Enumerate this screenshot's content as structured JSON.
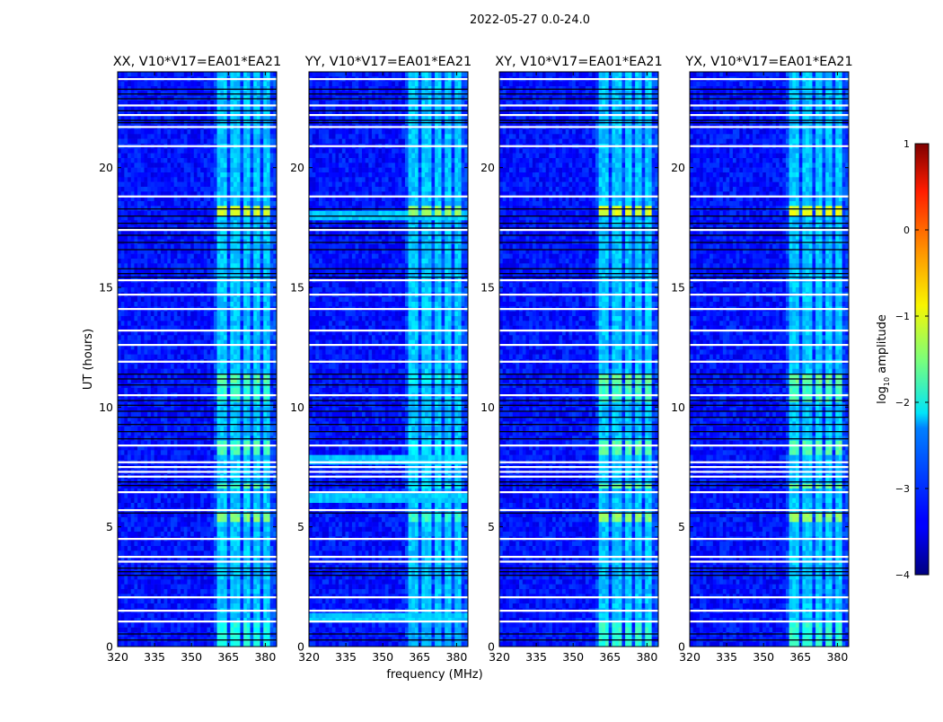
{
  "chart_data": {
    "type": "heatmap",
    "title": "2022-05-27 0.0-24.0",
    "ylabel": "UT (hours)",
    "xlabel": "frequency (MHz)",
    "xlim": [
      320,
      384.6
    ],
    "ylim": [
      0,
      24
    ],
    "xticks": [
      "320",
      "335",
      "350",
      "365",
      "380"
    ],
    "xtick_values": [
      320,
      335,
      350,
      365,
      380
    ],
    "yticks": [
      "0",
      "5",
      "10",
      "15",
      "20"
    ],
    "ytick_values": [
      0,
      5,
      10,
      15,
      20
    ],
    "colorbar": {
      "label_prefix": "log",
      "label_sub": "10",
      "label_suffix": " amplitude",
      "range": [
        -4,
        1
      ],
      "ticks": [
        "1",
        "0",
        "−1",
        "−2",
        "−3",
        "−4"
      ],
      "tick_values": [
        1,
        0,
        -1,
        -2,
        -3,
        -4
      ],
      "colormap": "jet"
    },
    "background_level": -3.3,
    "rfi_channels_mhz": [
      [
        361,
        364.5
      ],
      [
        366,
        369.5
      ],
      [
        371,
        374
      ],
      [
        375.5,
        378.5
      ],
      [
        379.5,
        382
      ]
    ],
    "rfi_level": -2.4,
    "bright_events": [
      {
        "t": [
          18.1,
          18.35
        ],
        "level": -1.1
      },
      {
        "t": [
          11.1,
          11.35
        ],
        "level": -1.7
      },
      {
        "t": [
          10.2,
          10.9
        ],
        "level": -1.9
      },
      {
        "t": [
          7.9,
          8.6
        ],
        "level": -1.8
      },
      {
        "t": [
          6.6,
          6.8
        ],
        "level": -1.7
      },
      {
        "t": [
          5.25,
          5.65
        ],
        "level": -1.5
      },
      {
        "t": [
          0.0,
          0.9
        ],
        "level": -2.0
      }
    ],
    "flagged_times_h": [
      23.7,
      22.6,
      22.2,
      21.7,
      20.9,
      18.8,
      17.4,
      15.3,
      14.7,
      14.1,
      13.2,
      12.6,
      11.9,
      10.5,
      8.4,
      7.7,
      7.5,
      7.3,
      7.1,
      6.45,
      5.7,
      4.5,
      3.75,
      3.55,
      2.06,
      1.5,
      1.05
    ],
    "dark_times_h": [
      23.3,
      23.1,
      22.9,
      22.4,
      22.0,
      21.9,
      18.3,
      18.0,
      17.7,
      17.5,
      17.2,
      16.9,
      16.6,
      15.8,
      15.6,
      15.45,
      11.4,
      11.2,
      10.95,
      10.3,
      10.1,
      9.85,
      9.6,
      9.3,
      9.0,
      8.7,
      6.9,
      6.75,
      5.6,
      3.3,
      3.15,
      3.0,
      0.55,
      0.3
    ],
    "panels": [
      {
        "title": "XX, V10*V17=EA01*EA21",
        "gain": 1.0,
        "row_boost": []
      },
      {
        "title": "YY, V10*V17=EA01*EA21",
        "gain": 1.25,
        "row_boost": [
          [
            7.6,
            8.0
          ],
          [
            6.0,
            6.4
          ],
          [
            1.1,
            1.4
          ],
          [
            17.8,
            18.1
          ]
        ]
      },
      {
        "title": "XY, V10*V17=EA01*EA21",
        "gain": 0.95,
        "row_boost": []
      },
      {
        "title": "YX, V10*V17=EA01*EA21",
        "gain": 0.95,
        "row_boost": []
      }
    ]
  }
}
